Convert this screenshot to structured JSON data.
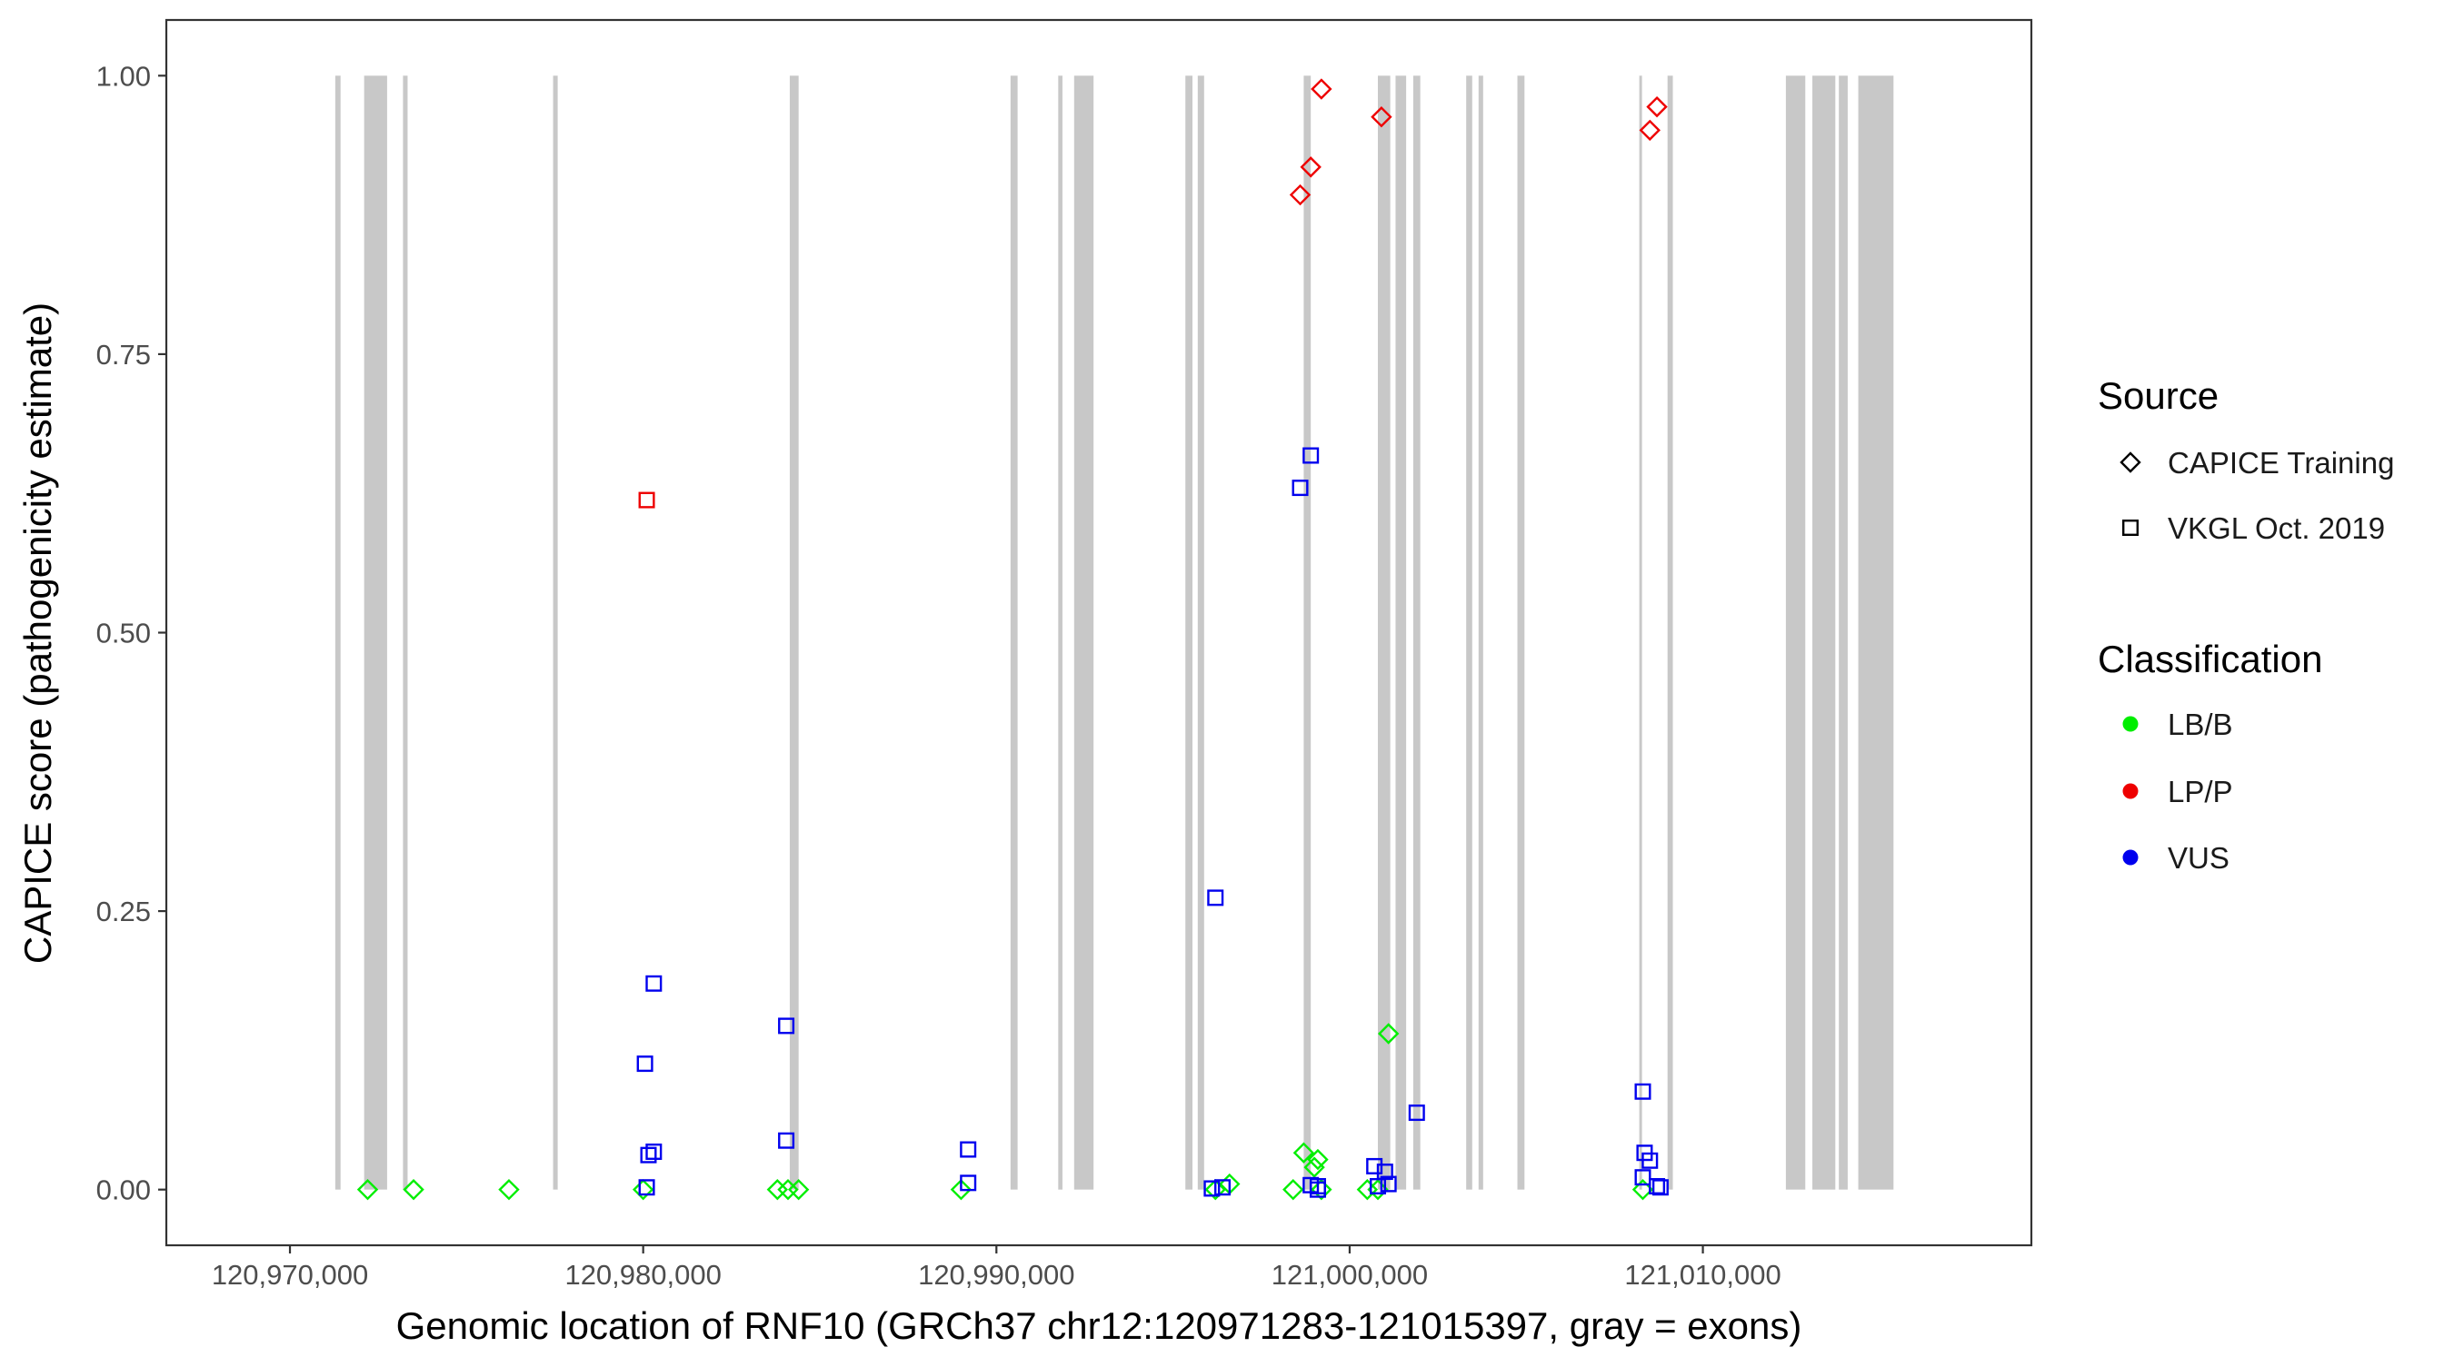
{
  "chart_data": {
    "type": "scatter",
    "xlabel": "Genomic location of RNF10 (GRCh37 chr12:120971283-121015397, gray = exons)",
    "ylabel": "CAPICE score (pathogenicity estimate)",
    "xlim": [
      120966500,
      121019300
    ],
    "ylim": [
      -0.05,
      1.05
    ],
    "x_ticks": [
      120970000,
      120980000,
      120990000,
      121000000,
      121010000
    ],
    "x_tick_labels": [
      "120,970,000",
      "120,980,000",
      "120,990,000",
      "121,000,000",
      "121,010,000"
    ],
    "y_ticks": [
      0,
      0.25,
      0.5,
      0.75,
      1.0
    ],
    "y_tick_labels": [
      "0.00",
      "0.25",
      "0.50",
      "0.75",
      "1.00"
    ],
    "grid": false,
    "legend_position": "right",
    "exon_color": "#c8c8c8",
    "exons": [
      [
        120971283,
        120971433
      ],
      [
        120972100,
        120972750
      ],
      [
        120973200,
        120973330
      ],
      [
        120977450,
        120977580
      ],
      [
        120984150,
        120984400
      ],
      [
        120990400,
        120990600
      ],
      [
        120991750,
        120991870
      ],
      [
        120992200,
        120992750
      ],
      [
        120995350,
        120995550
      ],
      [
        120995700,
        120995880
      ],
      [
        120998700,
        120998900
      ],
      [
        121000800,
        121001150
      ],
      [
        121001300,
        121001600
      ],
      [
        121001800,
        121002000
      ],
      [
        121003300,
        121003470
      ],
      [
        121003650,
        121003780
      ],
      [
        121004750,
        121004950
      ],
      [
        121008200,
        121008260
      ],
      [
        121009000,
        121009150
      ],
      [
        121012350,
        121012900
      ],
      [
        121013100,
        121013750
      ],
      [
        121013850,
        121014100
      ],
      [
        121014400,
        121015397
      ]
    ],
    "legend": {
      "source_title": "Source",
      "source_entries": [
        {
          "label": "CAPICE Training",
          "shape": "diamond"
        },
        {
          "label": "VKGL Oct. 2019",
          "shape": "square"
        }
      ],
      "class_title": "Classification",
      "class_entries": [
        {
          "label": "LB/B",
          "color": "#00ee00"
        },
        {
          "label": "LP/P",
          "color": "#ee0000"
        },
        {
          "label": "VUS",
          "color": "#0000ee"
        }
      ]
    },
    "series": [
      {
        "source": "CAPICE Training",
        "classification": "LB/B",
        "shape": "diamond",
        "color": "#00ee00",
        "points": [
          [
            120972200,
            0.0
          ],
          [
            120973500,
            0.0
          ],
          [
            120976200,
            0.0
          ],
          [
            120980000,
            0.0
          ],
          [
            120983800,
            0.0
          ],
          [
            120984100,
            0.0
          ],
          [
            120984400,
            0.0
          ],
          [
            120989000,
            0.0
          ],
          [
            120996200,
            0.0
          ],
          [
            120996600,
            0.005
          ],
          [
            120998400,
            0.0
          ],
          [
            120998700,
            0.033
          ],
          [
            120999000,
            0.02
          ],
          [
            120999100,
            0.027
          ],
          [
            120999200,
            0.0
          ],
          [
            121000500,
            0.0
          ],
          [
            121000800,
            0.0
          ],
          [
            121001100,
            0.14
          ],
          [
            121008300,
            0.0
          ]
        ]
      },
      {
        "source": "CAPICE Training",
        "classification": "LP/P",
        "shape": "diamond",
        "color": "#ee0000",
        "points": [
          [
            120998600,
            0.893
          ],
          [
            120998900,
            0.918
          ],
          [
            120999200,
            0.988
          ],
          [
            121000900,
            0.963
          ],
          [
            121008500,
            0.951
          ],
          [
            121008700,
            0.972
          ]
        ]
      },
      {
        "source": "VKGL Oct. 2019",
        "classification": "LP/P",
        "shape": "square",
        "color": "#ee0000",
        "points": [
          [
            120980100,
            0.619
          ]
        ]
      },
      {
        "source": "VKGL Oct. 2019",
        "classification": "VUS",
        "shape": "square",
        "color": "#0000ee",
        "points": [
          [
            120980100,
            0.002
          ],
          [
            120980050,
            0.113
          ],
          [
            120980150,
            0.031
          ],
          [
            120980300,
            0.034
          ],
          [
            120980300,
            0.185
          ],
          [
            120984050,
            0.147
          ],
          [
            120984050,
            0.044
          ],
          [
            120989200,
            0.036
          ],
          [
            120989200,
            0.006
          ],
          [
            120996200,
            0.262
          ],
          [
            120996100,
            0.001
          ],
          [
            120996400,
            0.002
          ],
          [
            120998600,
            0.63
          ],
          [
            120998900,
            0.659
          ],
          [
            120998900,
            0.004
          ],
          [
            120999100,
            0.003
          ],
          [
            120999100,
            0.0
          ],
          [
            121000700,
            0.021
          ],
          [
            121000800,
            0.003
          ],
          [
            121001000,
            0.016
          ],
          [
            121001100,
            0.005
          ],
          [
            121001900,
            0.069
          ],
          [
            121008300,
            0.088
          ],
          [
            121008350,
            0.033
          ],
          [
            121008500,
            0.026
          ],
          [
            121008300,
            0.011
          ],
          [
            121008700,
            0.003
          ],
          [
            121008800,
            0.002
          ]
        ]
      }
    ]
  }
}
